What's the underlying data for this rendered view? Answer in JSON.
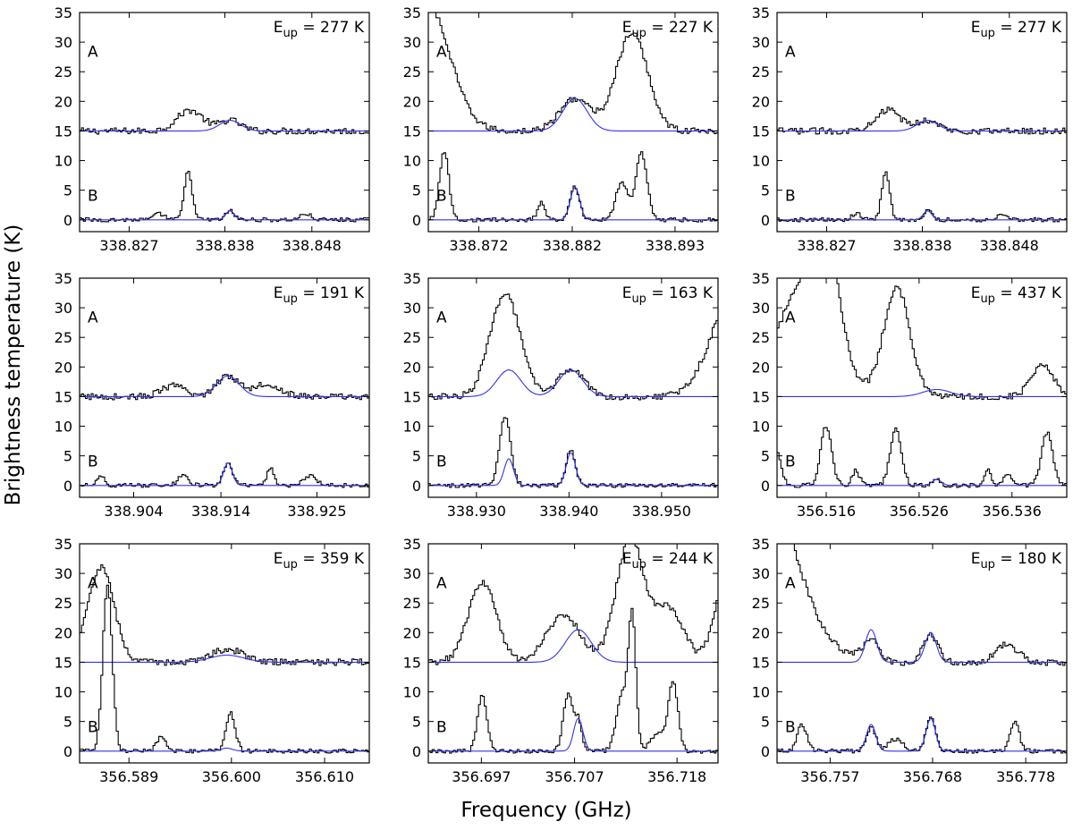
{
  "figure": {
    "ylabel": "Brightness temperature (K)",
    "xlabel": "Frequency (GHz)",
    "line_color_observed": "#000000",
    "line_color_model": "#3333ee",
    "trace_labels": [
      "A",
      "B"
    ],
    "yticks": [
      "0",
      "5",
      "10",
      "15",
      "20",
      "25",
      "30",
      "35"
    ]
  },
  "chart_data": [
    {
      "type": "line",
      "eup": "E$up$ = 277 K",
      "eup_text": "277 K",
      "ylim": [
        -2,
        35
      ],
      "offset_A": 15,
      "xlim": [
        338.8213,
        338.8546
      ],
      "xticks": [
        338.827,
        338.838,
        338.848
      ],
      "xtick_labels": [
        "338.827",
        "338.838",
        "338.848"
      ],
      "model_A": [
        {
          "center": 338.8386,
          "amp": 1.8,
          "width": 0.0012
        }
      ],
      "model_B": [
        {
          "center": 338.8386,
          "amp": 1.5,
          "width": 0.0005
        }
      ],
      "obs_A": [
        {
          "center": 338.834,
          "amp": 3.5,
          "width": 0.0015
        },
        {
          "center": 338.8386,
          "amp": 1.8,
          "width": 0.0012
        }
      ],
      "obs_B": [
        {
          "center": 338.8338,
          "amp": 8.2,
          "width": 0.00045
        },
        {
          "center": 338.8386,
          "amp": 1.5,
          "width": 0.0005
        },
        {
          "center": 338.8305,
          "amp": 1.0,
          "width": 0.0006
        },
        {
          "center": 338.8473,
          "amp": 1.0,
          "width": 0.0006
        }
      ]
    },
    {
      "type": "line",
      "eup_text": "227 K",
      "ylim": [
        -2,
        35
      ],
      "offset_A": 15,
      "xlim": [
        338.8666,
        338.8976
      ],
      "xticks": [
        338.872,
        338.882,
        338.893
      ],
      "xtick_labels": [
        "338.872",
        "338.882",
        "338.893"
      ],
      "model_A": [
        {
          "center": 338.8823,
          "amp": 5.5,
          "width": 0.0013
        }
      ],
      "model_B": [
        {
          "center": 338.8823,
          "amp": 5.5,
          "width": 0.0005
        }
      ],
      "obs_A": [
        {
          "center": 338.8663,
          "amp": 22,
          "width": 0.0025
        },
        {
          "center": 338.8823,
          "amp": 5.5,
          "width": 0.0016
        },
        {
          "center": 338.8884,
          "amp": 16.5,
          "width": 0.0017
        }
      ],
      "obs_B": [
        {
          "center": 338.8683,
          "amp": 11.5,
          "width": 0.0005
        },
        {
          "center": 338.8787,
          "amp": 3,
          "width": 0.0004
        },
        {
          "center": 338.8823,
          "amp": 5.5,
          "width": 0.0005
        },
        {
          "center": 338.8873,
          "amp": 6.5,
          "width": 0.0006
        },
        {
          "center": 338.8894,
          "amp": 11.5,
          "width": 0.0006
        }
      ]
    },
    {
      "type": "line",
      "eup_text": "277 K",
      "ylim": [
        -2,
        35
      ],
      "offset_A": 15,
      "xlim": [
        338.8213,
        338.8546
      ],
      "xticks": [
        338.827,
        338.838,
        338.848
      ],
      "xtick_labels": [
        "338.827",
        "338.838",
        "338.848"
      ],
      "model_A": [
        {
          "center": 338.8386,
          "amp": 1.8,
          "width": 0.0012
        }
      ],
      "model_B": [
        {
          "center": 338.8386,
          "amp": 1.5,
          "width": 0.0005
        }
      ],
      "obs_A": [
        {
          "center": 338.834,
          "amp": 3.5,
          "width": 0.0015
        },
        {
          "center": 338.8386,
          "amp": 1.8,
          "width": 0.0012
        }
      ],
      "obs_B": [
        {
          "center": 338.8338,
          "amp": 8.2,
          "width": 0.00045
        },
        {
          "center": 338.8386,
          "amp": 1.5,
          "width": 0.0005
        },
        {
          "center": 338.8305,
          "amp": 1.0,
          "width": 0.0006
        },
        {
          "center": 338.8473,
          "amp": 1.0,
          "width": 0.0006
        }
      ]
    },
    {
      "type": "line",
      "eup_text": "191 K",
      "ylim": [
        -2,
        35
      ],
      "offset_A": 15,
      "xlim": [
        338.8978,
        338.931
      ],
      "xticks": [
        338.904,
        338.914,
        338.925
      ],
      "xtick_labels": [
        "338.904",
        "338.914",
        "338.925"
      ],
      "model_A": [
        {
          "center": 338.9148,
          "amp": 3.5,
          "width": 0.0013
        }
      ],
      "model_B": [
        {
          "center": 338.9148,
          "amp": 3.8,
          "width": 0.0005
        }
      ],
      "obs_A": [
        {
          "center": 338.9148,
          "amp": 3.5,
          "width": 0.0013
        },
        {
          "center": 338.9085,
          "amp": 1.8,
          "width": 0.0013
        },
        {
          "center": 338.9192,
          "amp": 2.2,
          "width": 0.0015
        }
      ],
      "obs_B": [
        {
          "center": 338.9148,
          "amp": 4.0,
          "width": 0.0005
        },
        {
          "center": 338.9003,
          "amp": 1.8,
          "width": 0.0004
        },
        {
          "center": 338.9097,
          "amp": 1.8,
          "width": 0.0006
        },
        {
          "center": 338.9197,
          "amp": 3.0,
          "width": 0.0004
        },
        {
          "center": 338.9242,
          "amp": 1.5,
          "width": 0.0008
        }
      ]
    },
    {
      "type": "line",
      "eup_text": "163 K",
      "ylim": [
        -2,
        35
      ],
      "offset_A": 15,
      "xlim": [
        338.9248,
        338.9561
      ],
      "xticks": [
        338.93,
        338.94,
        338.95
      ],
      "xtick_labels": [
        "338.930",
        "338.940",
        "338.950"
      ],
      "model_A": [
        {
          "center": 338.9335,
          "amp": 4.5,
          "width": 0.0013
        },
        {
          "center": 338.9402,
          "amp": 4.5,
          "width": 0.0013
        }
      ],
      "model_B": [
        {
          "center": 338.9335,
          "amp": 4.5,
          "width": 0.0005
        },
        {
          "center": 338.9402,
          "amp": 5.5,
          "width": 0.0005
        }
      ],
      "obs_A": [
        {
          "center": 338.9331,
          "amp": 17.5,
          "width": 0.0016
        },
        {
          "center": 338.9402,
          "amp": 4.6,
          "width": 0.0014
        },
        {
          "center": 338.958,
          "amp": 18,
          "width": 0.0025
        }
      ],
      "obs_B": [
        {
          "center": 338.9331,
          "amp": 11.5,
          "width": 0.0006
        },
        {
          "center": 338.9402,
          "amp": 6.0,
          "width": 0.0005
        }
      ]
    },
    {
      "type": "line",
      "eup_text": "437 K",
      "ylim": [
        -2,
        35
      ],
      "offset_A": 15,
      "xlim": [
        356.5107,
        356.5419
      ],
      "xticks": [
        356.516,
        356.526,
        356.536
      ],
      "xtick_labels": [
        "356.516",
        "356.526",
        "356.536"
      ],
      "model_A": [
        {
          "center": 356.5279,
          "amp": 1.2,
          "width": 0.0015
        }
      ],
      "model_B": [
        {
          "center": 356.5279,
          "amp": 1.0,
          "width": 0.0005
        }
      ],
      "obs_A": [
        {
          "center": 356.5138,
          "amp": 20,
          "width": 0.0028
        },
        {
          "center": 356.5164,
          "amp": 12,
          "width": 0.0012
        },
        {
          "center": 356.5236,
          "amp": 18.5,
          "width": 0.0014
        },
        {
          "center": 356.5393,
          "amp": 5.5,
          "width": 0.0012
        }
      ],
      "obs_B": [
        {
          "center": 356.5104,
          "amp": 7,
          "width": 0.0006
        },
        {
          "center": 356.516,
          "amp": 10,
          "width": 0.0006
        },
        {
          "center": 356.5192,
          "amp": 2.5,
          "width": 0.0004
        },
        {
          "center": 356.5235,
          "amp": 9.5,
          "width": 0.0006
        },
        {
          "center": 356.5279,
          "amp": 1.0,
          "width": 0.0004
        },
        {
          "center": 356.5334,
          "amp": 2.5,
          "width": 0.0004
        },
        {
          "center": 356.5355,
          "amp": 2.0,
          "width": 0.0004
        },
        {
          "center": 356.5398,
          "amp": 9.0,
          "width": 0.0006
        }
      ]
    },
    {
      "type": "line",
      "eup_text": "359 K",
      "ylim": [
        -2,
        35
      ],
      "offset_A": 15,
      "xlim": [
        356.5837,
        356.6148
      ],
      "xticks": [
        356.589,
        356.6,
        356.61
      ],
      "xtick_labels": [
        "356.589",
        "356.600",
        "356.610"
      ],
      "model_A": [
        {
          "center": 356.5995,
          "amp": 1.2,
          "width": 0.0018
        }
      ],
      "model_B": [
        {
          "center": 356.5995,
          "amp": 0.5,
          "width": 0.0006
        }
      ],
      "obs_A": [
        {
          "center": 356.586,
          "amp": 16,
          "width": 0.0014
        },
        {
          "center": 356.5995,
          "amp": 2.2,
          "width": 0.0018
        }
      ],
      "obs_B": [
        {
          "center": 356.5867,
          "amp": 28,
          "width": 0.0005
        },
        {
          "center": 356.5925,
          "amp": 2.5,
          "width": 0.0005
        },
        {
          "center": 356.5999,
          "amp": 6.5,
          "width": 0.0005
        }
      ]
    },
    {
      "type": "line",
      "eup_text": "244 K",
      "ylim": [
        -2,
        35
      ],
      "offset_A": 15,
      "xlim": [
        356.6913,
        356.7224
      ],
      "xticks": [
        356.697,
        356.707,
        356.718
      ],
      "xtick_labels": [
        "356.697",
        "356.707",
        "356.718"
      ],
      "model_A": [
        {
          "center": 356.7074,
          "amp": 5.5,
          "width": 0.0014
        }
      ],
      "model_B": [
        {
          "center": 356.7074,
          "amp": 5.5,
          "width": 0.0005
        }
      ],
      "obs_A": [
        {
          "center": 356.6971,
          "amp": 13.5,
          "width": 0.0015
        },
        {
          "center": 356.7058,
          "amp": 8.0,
          "width": 0.0018
        },
        {
          "center": 356.713,
          "amp": 21,
          "width": 0.0015
        },
        {
          "center": 356.7172,
          "amp": 9.0,
          "width": 0.0015
        },
        {
          "center": 356.724,
          "amp": 20,
          "width": 0.0015
        }
      ],
      "obs_B": [
        {
          "center": 356.6971,
          "amp": 9.5,
          "width": 0.0005
        },
        {
          "center": 356.7063,
          "amp": 9.5,
          "width": 0.0005
        },
        {
          "center": 356.7074,
          "amp": 5.0,
          "width": 0.0004
        },
        {
          "center": 356.7121,
          "amp": 9.5,
          "width": 0.0006
        },
        {
          "center": 356.7132,
          "amp": 22,
          "width": 0.0004
        },
        {
          "center": 356.716,
          "amp": 3.0,
          "width": 0.0008
        },
        {
          "center": 356.7176,
          "amp": 11.5,
          "width": 0.0005
        }
      ]
    },
    {
      "type": "line",
      "eup_text": "180 K",
      "ylim": [
        -2,
        35
      ],
      "offset_A": 15,
      "xlim": [
        356.7513,
        356.7824
      ],
      "xticks": [
        356.757,
        356.768,
        356.778
      ],
      "xtick_labels": [
        "356.757",
        "356.768",
        "356.778"
      ],
      "model_A": [
        {
          "center": 356.7614,
          "amp": 5.5,
          "width": 0.0006
        },
        {
          "center": 356.7678,
          "amp": 5.0,
          "width": 0.0006
        }
      ],
      "model_B": [
        {
          "center": 356.7614,
          "amp": 4.5,
          "width": 0.0005
        },
        {
          "center": 356.7678,
          "amp": 5.5,
          "width": 0.0005
        }
      ],
      "obs_A": [
        {
          "center": 356.747,
          "amp": 50,
          "width": 0.0045
        },
        {
          "center": 356.7614,
          "amp": 3.5,
          "width": 0.0009
        },
        {
          "center": 356.7678,
          "amp": 4.5,
          "width": 0.0008
        },
        {
          "center": 356.776,
          "amp": 3.0,
          "width": 0.0012
        }
      ],
      "obs_B": [
        {
          "center": 356.7614,
          "amp": 4.0,
          "width": 0.0005
        },
        {
          "center": 356.7678,
          "amp": 5.5,
          "width": 0.0005
        },
        {
          "center": 356.754,
          "amp": 4.5,
          "width": 0.0005
        },
        {
          "center": 356.764,
          "amp": 2.0,
          "width": 0.0008
        },
        {
          "center": 356.7768,
          "amp": 5.0,
          "width": 0.0005
        }
      ]
    }
  ]
}
